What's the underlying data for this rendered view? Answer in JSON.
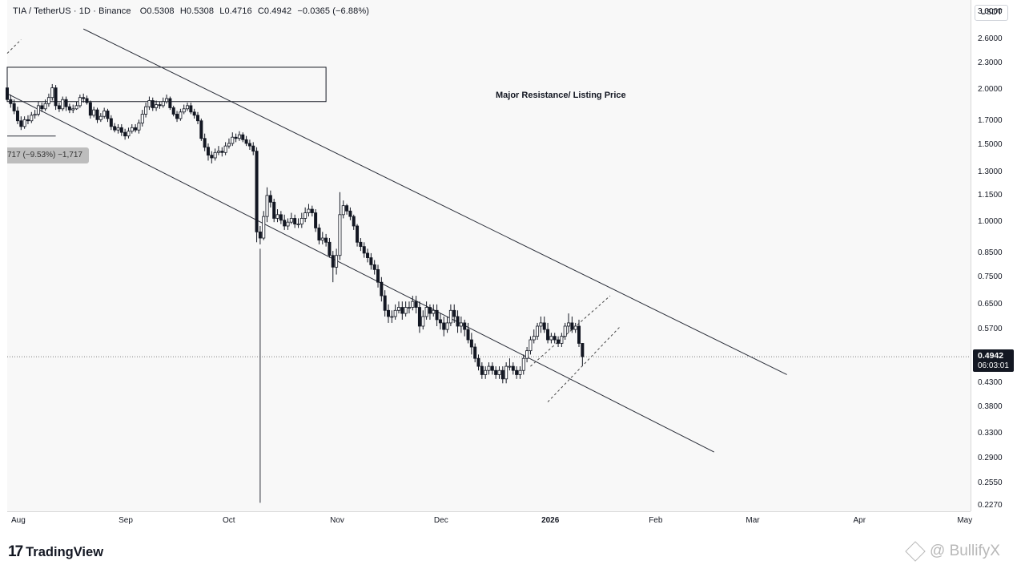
{
  "header": {
    "symbol": "TIA / TetherUS · 1D · Binance",
    "open": "O0.5308",
    "high": "H0.5308",
    "low": "L0.4716",
    "close": "C0.4942",
    "change": "−0.0365 (−6.88%)"
  },
  "price_scale": {
    "currency": "USDT",
    "ticks": [
      "3.0000",
      "2.6000",
      "2.3000",
      "2.0000",
      "1.7000",
      "1.5000",
      "1.3000",
      "1.1500",
      "1.0000",
      "0.8500",
      "0.7500",
      "0.6500",
      "0.5700",
      "0.4300",
      "0.3800",
      "0.3300",
      "0.2900",
      "0.2550",
      "0.2270"
    ],
    "last_price": "0.4942",
    "countdown": "06:03:01"
  },
  "time_axis": {
    "ticks": [
      "Aug",
      "Sep",
      "Oct",
      "Nov",
      "Dec",
      "2026",
      "Feb",
      "Mar",
      "Apr",
      "May"
    ]
  },
  "annotations": {
    "resistance_label": "Major Resistance/ Listing Price",
    "measure_label": "717 (−9.53%) −1,717"
  },
  "branding": {
    "logo_mark": "17",
    "logo_text": "TradingView",
    "watermark": "@ BullifyX"
  },
  "chart_data": {
    "type": "candlestick",
    "title": "TIA / TetherUS · 1D · Binance",
    "y_scale": "log",
    "ylim": [
      0.22,
      3.2
    ],
    "x_range": [
      "2025-07-29",
      "2026-05-03"
    ],
    "colors": {
      "up": "#ffffff",
      "down": "#131722",
      "outline": "#131722"
    },
    "series": [
      {
        "name": "TIA/USDT",
        "start_date": "2025-07-29",
        "o": [
          2.02,
          1.9,
          1.86,
          1.79,
          1.7,
          1.65,
          1.71,
          1.7,
          1.75,
          1.76,
          1.84,
          1.81,
          1.86,
          1.92,
          2.02,
          1.84,
          1.81,
          1.9,
          1.83,
          1.8,
          1.81,
          1.84,
          1.92,
          1.91,
          1.87,
          1.75,
          1.8,
          1.71,
          1.74,
          1.79,
          1.72,
          1.65,
          1.62,
          1.64,
          1.6,
          1.57,
          1.61,
          1.64,
          1.62,
          1.68,
          1.76,
          1.83,
          1.89,
          1.82,
          1.85,
          1.84,
          1.88,
          1.91,
          1.82,
          1.76,
          1.72,
          1.78,
          1.81,
          1.84,
          1.78,
          1.75,
          1.7,
          1.55,
          1.48,
          1.42,
          1.4,
          1.44,
          1.45,
          1.44,
          1.49,
          1.51,
          1.56,
          1.55,
          1.58,
          1.54,
          1.51,
          1.49,
          1.45,
          0.95,
          0.92,
          1.03,
          1.15,
          1.11,
          1.02,
          1.04,
          1.01,
          0.98,
          1.0,
          1.02,
          0.99,
          0.99,
          1.02,
          1.05,
          1.07,
          1.05,
          0.97,
          0.91,
          0.92,
          0.9,
          0.84,
          0.79,
          0.84,
          1.04,
          1.09,
          1.06,
          1.03,
          0.98,
          0.9,
          0.88,
          0.85,
          0.83,
          0.8,
          0.78,
          0.73,
          0.68,
          0.63,
          0.61,
          0.61,
          0.63,
          0.64,
          0.62,
          0.64,
          0.64,
          0.66,
          0.64,
          0.58,
          0.61,
          0.64,
          0.62,
          0.63,
          0.6,
          0.59,
          0.57,
          0.59,
          0.63,
          0.61,
          0.58,
          0.59,
          0.57,
          0.54,
          0.52,
          0.49,
          0.47,
          0.45,
          0.46,
          0.47,
          0.46,
          0.45,
          0.46,
          0.44,
          0.47,
          0.47,
          0.46,
          0.45,
          0.46,
          0.49,
          0.51,
          0.54,
          0.55,
          0.58,
          0.59,
          0.57,
          0.54,
          0.55,
          0.54,
          0.53,
          0.55,
          0.58,
          0.59,
          0.57,
          0.58,
          0.53
        ],
        "c": [
          1.9,
          1.86,
          1.79,
          1.7,
          1.65,
          1.71,
          1.7,
          1.75,
          1.76,
          1.84,
          1.81,
          1.86,
          1.92,
          2.02,
          1.84,
          1.81,
          1.9,
          1.83,
          1.8,
          1.81,
          1.84,
          1.92,
          1.91,
          1.87,
          1.75,
          1.8,
          1.71,
          1.74,
          1.79,
          1.72,
          1.65,
          1.62,
          1.64,
          1.6,
          1.57,
          1.61,
          1.64,
          1.62,
          1.68,
          1.76,
          1.83,
          1.89,
          1.82,
          1.85,
          1.84,
          1.88,
          1.91,
          1.82,
          1.76,
          1.72,
          1.78,
          1.81,
          1.84,
          1.78,
          1.75,
          1.7,
          1.55,
          1.48,
          1.42,
          1.4,
          1.44,
          1.45,
          1.44,
          1.49,
          1.51,
          1.56,
          1.55,
          1.58,
          1.54,
          1.51,
          1.49,
          1.45,
          0.95,
          0.92,
          1.03,
          1.15,
          1.11,
          1.02,
          1.04,
          1.01,
          0.98,
          1.0,
          1.02,
          0.99,
          0.99,
          1.02,
          1.05,
          1.07,
          1.05,
          0.97,
          0.91,
          0.92,
          0.9,
          0.84,
          0.79,
          0.84,
          1.04,
          1.09,
          1.06,
          1.03,
          0.98,
          0.9,
          0.88,
          0.85,
          0.83,
          0.8,
          0.78,
          0.73,
          0.68,
          0.63,
          0.61,
          0.61,
          0.63,
          0.64,
          0.62,
          0.64,
          0.64,
          0.66,
          0.64,
          0.58,
          0.61,
          0.64,
          0.62,
          0.63,
          0.6,
          0.59,
          0.57,
          0.59,
          0.63,
          0.61,
          0.58,
          0.59,
          0.57,
          0.54,
          0.52,
          0.49,
          0.47,
          0.45,
          0.46,
          0.47,
          0.46,
          0.45,
          0.46,
          0.44,
          0.47,
          0.47,
          0.46,
          0.45,
          0.46,
          0.49,
          0.51,
          0.54,
          0.55,
          0.58,
          0.59,
          0.57,
          0.54,
          0.55,
          0.54,
          0.53,
          0.55,
          0.58,
          0.59,
          0.57,
          0.58,
          0.53,
          0.4942
        ],
        "h": [
          2.06,
          1.95,
          1.9,
          1.83,
          1.74,
          1.74,
          1.75,
          1.78,
          1.8,
          1.88,
          1.87,
          1.9,
          1.96,
          2.06,
          2.05,
          1.87,
          1.93,
          1.93,
          1.86,
          1.85,
          1.88,
          1.95,
          1.96,
          1.94,
          1.89,
          1.83,
          1.82,
          1.77,
          1.82,
          1.81,
          1.75,
          1.68,
          1.67,
          1.67,
          1.63,
          1.64,
          1.67,
          1.67,
          1.71,
          1.8,
          1.87,
          1.93,
          1.92,
          1.89,
          1.88,
          1.92,
          1.95,
          1.93,
          1.84,
          1.79,
          1.81,
          1.85,
          1.87,
          1.87,
          1.81,
          1.78,
          1.72,
          1.59,
          1.51,
          1.45,
          1.47,
          1.49,
          1.48,
          1.52,
          1.55,
          1.6,
          1.59,
          1.61,
          1.6,
          1.57,
          1.54,
          1.52,
          1.48,
          0.98,
          1.06,
          1.2,
          1.18,
          1.13,
          1.07,
          1.06,
          1.04,
          1.02,
          1.05,
          1.04,
          1.02,
          1.05,
          1.08,
          1.1,
          1.09,
          1.07,
          0.99,
          0.95,
          0.94,
          0.92,
          0.86,
          0.87,
          1.17,
          1.12,
          1.1,
          1.08,
          1.04,
          0.99,
          0.92,
          0.9,
          0.87,
          0.85,
          0.82,
          0.8,
          0.75,
          0.7,
          0.65,
          0.63,
          0.65,
          0.66,
          0.66,
          0.66,
          0.66,
          0.68,
          0.68,
          0.66,
          0.63,
          0.66,
          0.65,
          0.65,
          0.65,
          0.62,
          0.61,
          0.61,
          0.65,
          0.65,
          0.63,
          0.61,
          0.6,
          0.59,
          0.56,
          0.53,
          0.5,
          0.48,
          0.47,
          0.48,
          0.48,
          0.47,
          0.47,
          0.47,
          0.48,
          0.49,
          0.48,
          0.47,
          0.47,
          0.5,
          0.52,
          0.55,
          0.57,
          0.59,
          0.61,
          0.61,
          0.59,
          0.56,
          0.56,
          0.55,
          0.56,
          0.59,
          0.62,
          0.61,
          0.59,
          0.6,
          0.5308
        ],
        "l": [
          1.88,
          1.82,
          1.76,
          1.67,
          1.62,
          1.63,
          1.67,
          1.68,
          1.72,
          1.74,
          1.78,
          1.79,
          1.83,
          1.89,
          1.8,
          1.78,
          1.79,
          1.79,
          1.77,
          1.77,
          1.8,
          1.82,
          1.87,
          1.85,
          1.72,
          1.73,
          1.68,
          1.69,
          1.72,
          1.69,
          1.62,
          1.6,
          1.59,
          1.57,
          1.54,
          1.55,
          1.59,
          1.6,
          1.59,
          1.65,
          1.73,
          1.8,
          1.79,
          1.79,
          1.81,
          1.82,
          1.86,
          1.8,
          1.74,
          1.69,
          1.7,
          1.76,
          1.79,
          1.76,
          1.72,
          1.67,
          1.53,
          1.45,
          1.38,
          1.36,
          1.38,
          1.42,
          1.41,
          1.42,
          1.47,
          1.49,
          1.52,
          1.53,
          1.52,
          1.49,
          1.46,
          1.42,
          0.9,
          0.89,
          0.91,
          1.0,
          1.08,
          1.0,
          1.0,
          0.99,
          0.96,
          0.96,
          0.99,
          0.97,
          0.97,
          0.97,
          1.0,
          1.03,
          1.03,
          0.95,
          0.89,
          0.89,
          0.88,
          0.83,
          0.73,
          0.76,
          0.82,
          1.02,
          1.04,
          1.01,
          0.96,
          0.88,
          0.86,
          0.83,
          0.81,
          0.78,
          0.76,
          0.71,
          0.66,
          0.61,
          0.59,
          0.59,
          0.6,
          0.62,
          0.6,
          0.61,
          0.62,
          0.63,
          0.62,
          0.56,
          0.57,
          0.6,
          0.6,
          0.61,
          0.58,
          0.57,
          0.55,
          0.56,
          0.58,
          0.59,
          0.56,
          0.56,
          0.55,
          0.53,
          0.5,
          0.48,
          0.46,
          0.44,
          0.44,
          0.45,
          0.45,
          0.44,
          0.44,
          0.43,
          0.43,
          0.46,
          0.45,
          0.44,
          0.44,
          0.45,
          0.48,
          0.5,
          0.53,
          0.54,
          0.56,
          0.56,
          0.53,
          0.53,
          0.53,
          0.52,
          0.52,
          0.54,
          0.56,
          0.56,
          0.56,
          0.52,
          0.4716
        ]
      }
    ],
    "zones": [
      {
        "label": "Major Resistance/ Listing Price",
        "y_low": 1.88,
        "y_high": 2.25,
        "x_start": "2025-07-29",
        "x_end": "2025-10-29"
      }
    ],
    "trendlines": [
      {
        "name": "channel-upper",
        "x": [
          "2025-08-20",
          "2026-03-11"
        ],
        "y": [
          2.75,
          0.45
        ]
      },
      {
        "name": "channel-lower",
        "x": [
          "2025-07-29",
          "2026-02-18"
        ],
        "y": [
          1.96,
          0.3
        ]
      },
      {
        "name": "dashed-upper",
        "x": [
          "2025-12-27",
          "2026-01-19"
        ],
        "y": [
          0.47,
          0.68
        ]
      },
      {
        "name": "dashed-lower",
        "x": [
          "2026-01-01",
          "2026-01-22"
        ],
        "y": [
          0.39,
          0.58
        ]
      },
      {
        "name": "dashed-top-left",
        "x": [
          "2025-07-29",
          "2025-08-02"
        ],
        "y": [
          2.42,
          2.6
        ]
      }
    ],
    "last_price_line": 0.4942,
    "vertical_marker": {
      "x": "2025-10-10",
      "y_top": 0.87,
      "y_bottom": 0.23
    },
    "measure": {
      "label": "717 (−9.53%) −1,717",
      "x_start": "2025-07-29",
      "x_end": "2025-08-12",
      "y": 1.57
    }
  }
}
